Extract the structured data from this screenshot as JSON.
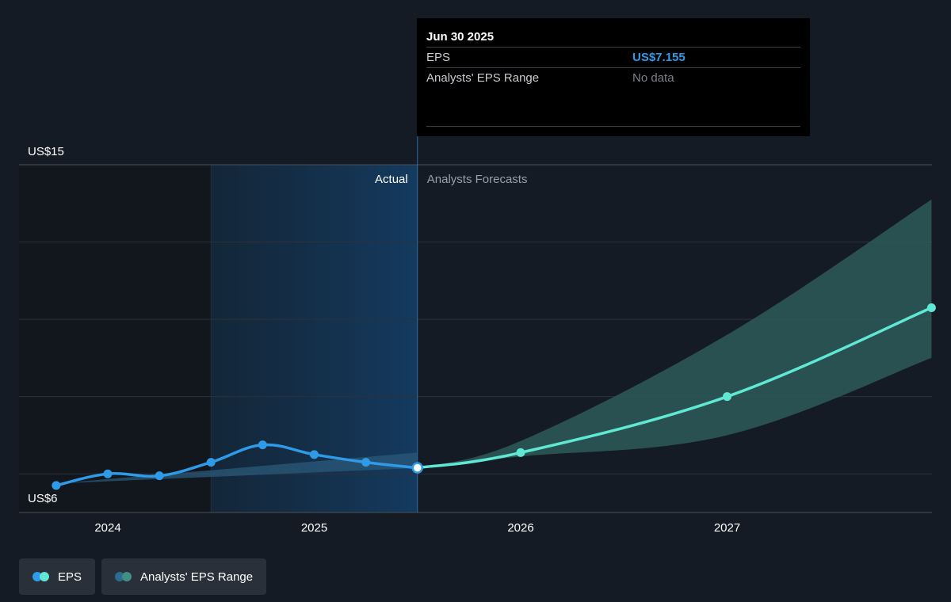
{
  "tooltip": {
    "date": "Jun 30 2025",
    "eps_label": "EPS",
    "eps_value": "US$7.155",
    "range_label": "Analysts' EPS Range",
    "range_value": "No data"
  },
  "legend": [
    {
      "label": "EPS",
      "colors": [
        "#2f9be8",
        "#5fe8d3"
      ]
    },
    {
      "label": "Analysts' EPS Range",
      "colors": [
        "#2a6d8f",
        "#3f8f86"
      ]
    }
  ],
  "colors": {
    "background": "#151b24",
    "actual_line": "#2f9be8",
    "forecast_line": "#5fe8d3",
    "forecast_band": "#2e5b5a",
    "actual_band": "#2a5a7a",
    "highlight_region": "#12304a",
    "grid": "#2c323b"
  },
  "chart_data": {
    "type": "line",
    "ylabel_top": "US$15",
    "ylabel_bottom": "US$6",
    "ylim": [
      6,
      15
    ],
    "x_ticks": [
      {
        "label": "2024",
        "year": 2024.0
      },
      {
        "label": "2025",
        "year": 2025.0
      },
      {
        "label": "2026",
        "year": 2026.0
      },
      {
        "label": "2027",
        "year": 2027.0
      }
    ],
    "divider_year": 2025.5,
    "highlight_start_year": 2024.5,
    "actual_label": "Actual",
    "forecast_label": "Analysts Forecasts",
    "series": [
      {
        "name": "EPS",
        "kind": "actual",
        "points": [
          {
            "year": 2023.75,
            "value": 6.7
          },
          {
            "year": 2024.0,
            "value": 7.0
          },
          {
            "year": 2024.25,
            "value": 6.95
          },
          {
            "year": 2024.5,
            "value": 7.3
          },
          {
            "year": 2024.75,
            "value": 7.75
          },
          {
            "year": 2025.0,
            "value": 7.5
          },
          {
            "year": 2025.25,
            "value": 7.3
          },
          {
            "year": 2025.5,
            "value": 7.155
          }
        ]
      },
      {
        "name": "EPS",
        "kind": "forecast",
        "points": [
          {
            "year": 2025.5,
            "value": 7.155
          },
          {
            "year": 2026.0,
            "value": 7.55
          },
          {
            "year": 2027.0,
            "value": 9.0
          },
          {
            "year": 2027.99,
            "value": 11.3
          }
        ]
      }
    ],
    "range_band": {
      "name": "Analysts' EPS Range",
      "actual": {
        "upper": [
          {
            "year": 2023.75,
            "value": 6.75
          },
          {
            "year": 2025.5,
            "value": 7.55
          }
        ],
        "lower": [
          {
            "year": 2023.75,
            "value": 6.75
          },
          {
            "year": 2025.5,
            "value": 7.15
          }
        ]
      },
      "forecast": {
        "upper": [
          {
            "year": 2025.5,
            "value": 7.155
          },
          {
            "year": 2026.0,
            "value": 7.85
          },
          {
            "year": 2027.0,
            "value": 10.6
          },
          {
            "year": 2027.99,
            "value": 14.1
          }
        ],
        "lower": [
          {
            "year": 2025.5,
            "value": 7.155
          },
          {
            "year": 2026.0,
            "value": 7.45
          },
          {
            "year": 2027.0,
            "value": 8.0
          },
          {
            "year": 2027.99,
            "value": 10.0
          }
        ]
      }
    }
  }
}
